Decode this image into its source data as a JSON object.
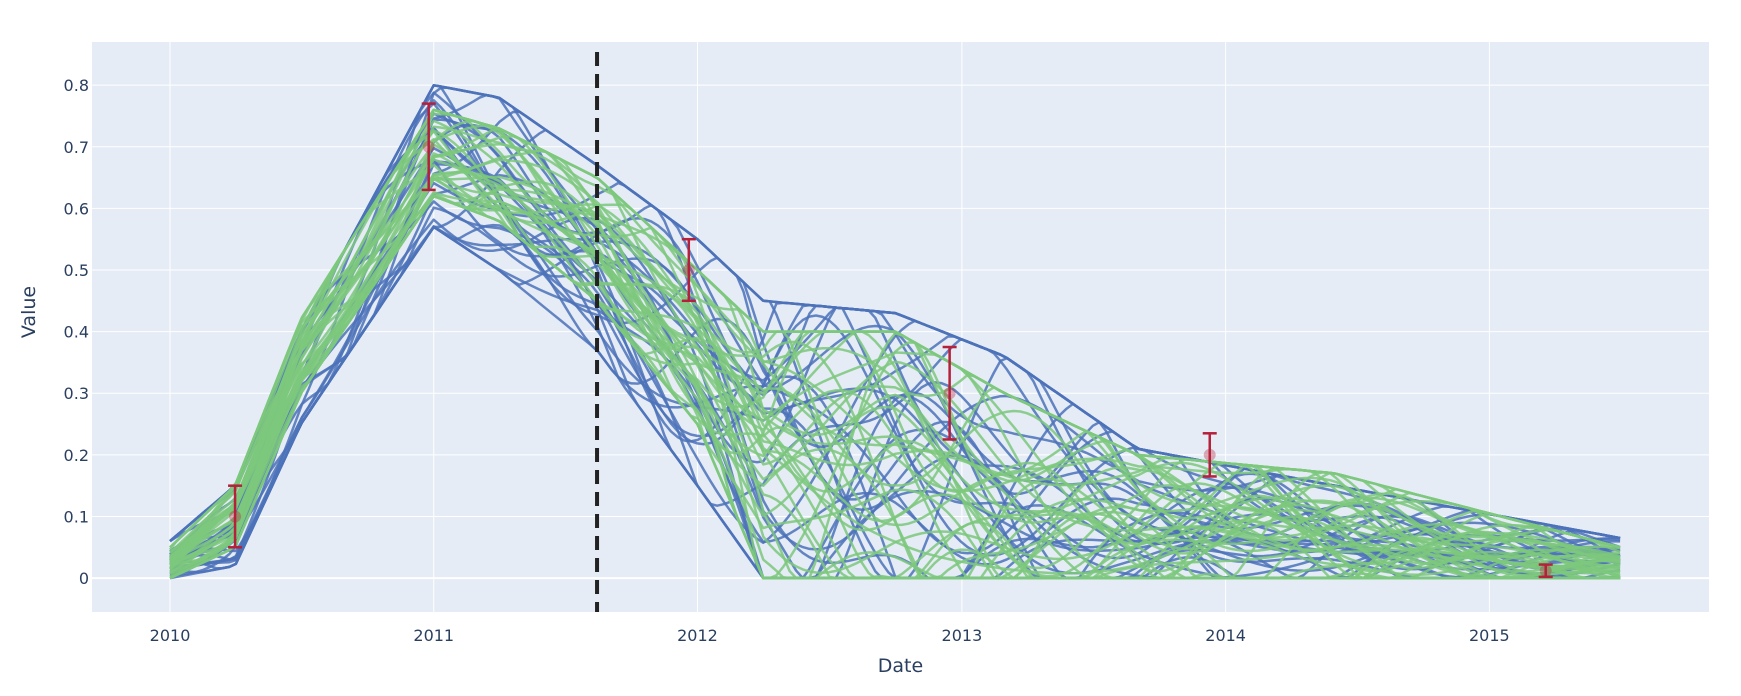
{
  "chart_data": {
    "type": "line",
    "xlabel": "Date",
    "ylabel": "Value",
    "x_type": "date",
    "xlim": [
      "2009-09-15",
      "2015-11-01"
    ],
    "ylim": [
      -0.055,
      0.87
    ],
    "x_ticks": [
      "2010",
      "2011",
      "2012",
      "2013",
      "2014",
      "2015"
    ],
    "y_ticks": [
      "0",
      "0.1",
      "0.2",
      "0.3",
      "0.4",
      "0.5",
      "0.6",
      "0.7",
      "0.8"
    ],
    "grid": true,
    "legend": "none",
    "colors": {
      "plot_background": "#e5ecf6",
      "grid": "#ffffff",
      "series_a": "#4c72b8",
      "series_b": "#7dc87d",
      "observations": "#b5203a",
      "vline": "#222222",
      "axis_text": "#2a3f5f"
    },
    "vertical_line": {
      "x": "2011-08-15",
      "style": "dashed"
    },
    "observations": [
      {
        "x": "2010-04-01",
        "y": 0.1,
        "error": 0.05
      },
      {
        "x": "2010-12-25",
        "y": 0.7,
        "error": 0.07
      },
      {
        "x": "2011-12-20",
        "y": 0.5,
        "error": 0.05
      },
      {
        "x": "2012-12-15",
        "y": 0.3,
        "error": 0.075
      },
      {
        "x": "2013-12-10",
        "y": 0.2,
        "error": 0.035
      },
      {
        "x": "2015-03-20",
        "y": 0.012,
        "error": 0.01
      }
    ],
    "series_groups": [
      {
        "color": "series_a",
        "count": 30,
        "x_start": "2010-01-01",
        "x_end": "2015-07-01",
        "envelope": [
          {
            "x": "2010-01-01",
            "y_min": 0.0,
            "y_max": 0.06
          },
          {
            "x": "2010-04-01",
            "y_min": 0.02,
            "y_max": 0.15
          },
          {
            "x": "2010-07-01",
            "y_min": 0.25,
            "y_max": 0.4
          },
          {
            "x": "2011-01-01",
            "y_min": 0.57,
            "y_max": 0.8
          },
          {
            "x": "2011-04-01",
            "y_min": 0.5,
            "y_max": 0.78
          },
          {
            "x": "2011-08-15",
            "y_min": 0.37,
            "y_max": 0.67
          },
          {
            "x": "2012-01-01",
            "y_min": 0.15,
            "y_max": 0.55
          },
          {
            "x": "2012-04-01",
            "y_min": 0.0,
            "y_max": 0.45
          },
          {
            "x": "2012-10-01",
            "y_min": 0.0,
            "y_max": 0.43
          },
          {
            "x": "2013-03-01",
            "y_min": 0.0,
            "y_max": 0.36
          },
          {
            "x": "2013-09-01",
            "y_min": 0.0,
            "y_max": 0.21
          },
          {
            "x": "2014-06-01",
            "y_min": 0.0,
            "y_max": 0.15
          },
          {
            "x": "2015-07-01",
            "y_min": 0.0,
            "y_max": 0.065
          }
        ]
      },
      {
        "color": "series_b",
        "count": 40,
        "x_start": "2010-01-01",
        "x_end": "2015-07-01",
        "envelope": [
          {
            "x": "2010-01-01",
            "y_min": 0.0,
            "y_max": 0.05
          },
          {
            "x": "2010-04-01",
            "y_min": 0.05,
            "y_max": 0.15
          },
          {
            "x": "2010-07-01",
            "y_min": 0.3,
            "y_max": 0.42
          },
          {
            "x": "2011-01-01",
            "y_min": 0.62,
            "y_max": 0.76
          },
          {
            "x": "2011-04-01",
            "y_min": 0.58,
            "y_max": 0.73
          },
          {
            "x": "2011-08-15",
            "y_min": 0.45,
            "y_max": 0.65
          },
          {
            "x": "2012-01-01",
            "y_min": 0.25,
            "y_max": 0.5
          },
          {
            "x": "2012-04-01",
            "y_min": 0.0,
            "y_max": 0.4
          },
          {
            "x": "2012-10-01",
            "y_min": 0.0,
            "y_max": 0.4
          },
          {
            "x": "2013-03-01",
            "y_min": 0.0,
            "y_max": 0.3
          },
          {
            "x": "2013-09-01",
            "y_min": 0.0,
            "y_max": 0.2
          },
          {
            "x": "2014-06-01",
            "y_min": 0.0,
            "y_max": 0.17
          },
          {
            "x": "2015-07-01",
            "y_min": 0.0,
            "y_max": 0.05
          }
        ]
      }
    ]
  }
}
